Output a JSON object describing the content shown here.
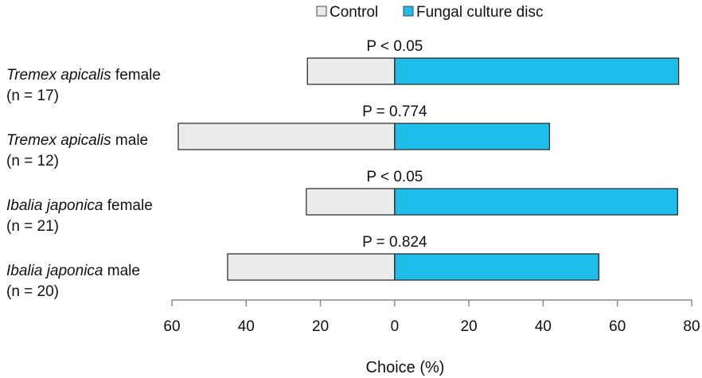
{
  "chart_data": {
    "type": "bar",
    "orientation": "horizontal-diverging",
    "xlabel": "Choice (%)",
    "xlim": [
      -60,
      80
    ],
    "xticks": [
      -60,
      -40,
      -20,
      0,
      20,
      40,
      60,
      80
    ],
    "xtick_labels": [
      "60",
      "40",
      "20",
      "0",
      "20",
      "40",
      "60",
      "80"
    ],
    "legend_position": "top",
    "legend": [
      {
        "name": "Control",
        "color": "#ebebeb"
      },
      {
        "name": "Fungal culture disc",
        "color": "#1fbdea"
      }
    ],
    "categories": [
      {
        "species": "Tremex apicalis",
        "suffix": " female",
        "n": "(n = 17)",
        "p": "P < 0.05",
        "control": 23.5,
        "fungal": 76.5
      },
      {
        "species": "Tremex apicalis",
        "suffix": " male",
        "n": "(n = 12)",
        "p": "P = 0.774",
        "control": 58.3,
        "fungal": 41.7
      },
      {
        "species": "Ibalia japonica",
        "suffix": " female",
        "n": "(n = 21)",
        "p": "P < 0.05",
        "control": 23.8,
        "fungal": 76.2
      },
      {
        "species": "Ibalia japonica",
        "suffix": " male",
        "n": "(n = 20)",
        "p": "P = 0.824",
        "control": 45,
        "fungal": 55
      }
    ]
  }
}
